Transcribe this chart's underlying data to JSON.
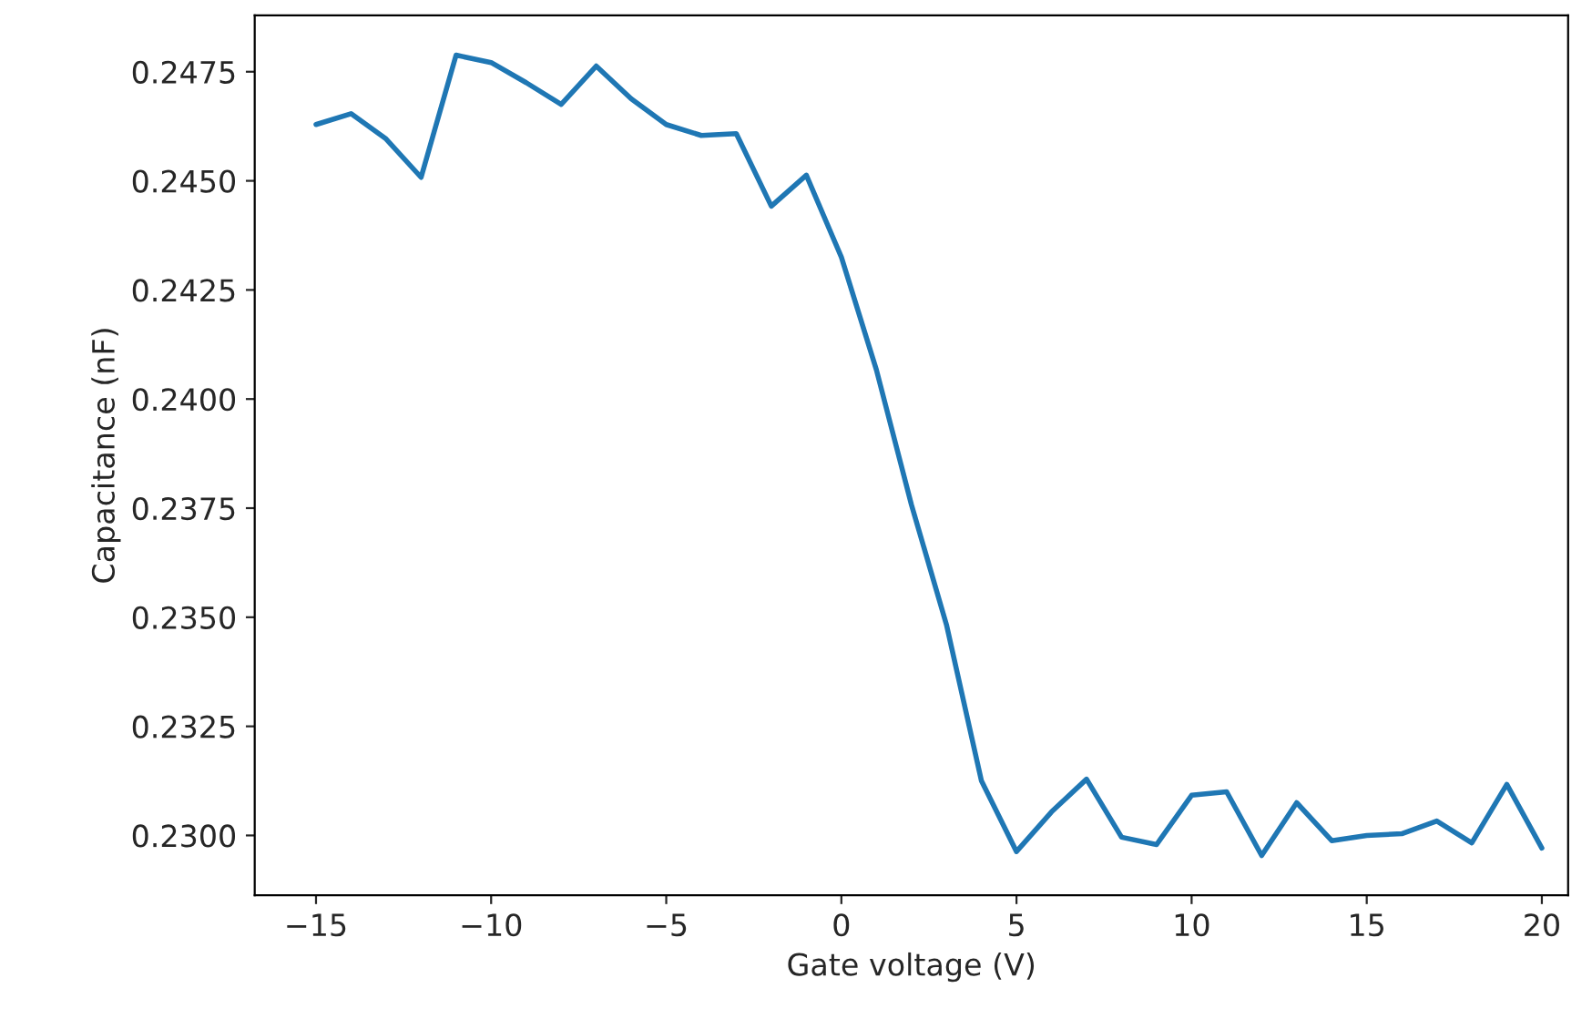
{
  "chart_data": {
    "type": "line",
    "xlabel": "Gate voltage (V)",
    "ylabel": "Capacitance (nF)",
    "x": [
      -15,
      -14,
      -13,
      -12,
      -11,
      -10,
      -9,
      -8,
      -7,
      -6,
      -5,
      -4,
      -3,
      -2,
      -1,
      0,
      1,
      2,
      3,
      4,
      5,
      6,
      7,
      8,
      9,
      10,
      11,
      12,
      13,
      14,
      15,
      16,
      17,
      18,
      19,
      20
    ],
    "series": [
      {
        "color": "#1f77b4",
        "values": [
          0.24629,
          0.24654,
          0.24596,
          0.24508,
          0.24788,
          0.24771,
          0.24725,
          0.24675,
          0.24763,
          0.24688,
          0.24629,
          0.24604,
          0.24608,
          0.24442,
          0.24513,
          0.24325,
          0.24067,
          0.23758,
          0.23483,
          0.23125,
          0.22963,
          0.23054,
          0.23129,
          0.22996,
          0.22979,
          0.23092,
          0.231,
          0.22954,
          0.23075,
          0.22988,
          0.23,
          0.23004,
          0.23033,
          0.22983,
          0.23117,
          0.22971
        ]
      }
    ],
    "xlim": [
      -16.75,
      20.75
    ],
    "ylim": [
      0.22863,
      0.24879
    ],
    "xticks": [
      {
        "value": -15,
        "label": "−15"
      },
      {
        "value": -10,
        "label": "−10"
      },
      {
        "value": -5,
        "label": "−5"
      },
      0,
      5,
      10,
      15,
      20
    ],
    "yticks": [
      {
        "value": 0.23,
        "label": "0.2300"
      },
      {
        "value": 0.2325,
        "label": "0.2325"
      },
      {
        "value": 0.235,
        "label": "0.2350"
      },
      {
        "value": 0.2375,
        "label": "0.2375"
      },
      {
        "value": 0.24,
        "label": "0.2400"
      },
      {
        "value": 0.2425,
        "label": "0.2425"
      },
      {
        "value": 0.245,
        "label": "0.2450"
      },
      {
        "value": 0.2475,
        "label": "0.2475"
      }
    ],
    "grid": false
  }
}
